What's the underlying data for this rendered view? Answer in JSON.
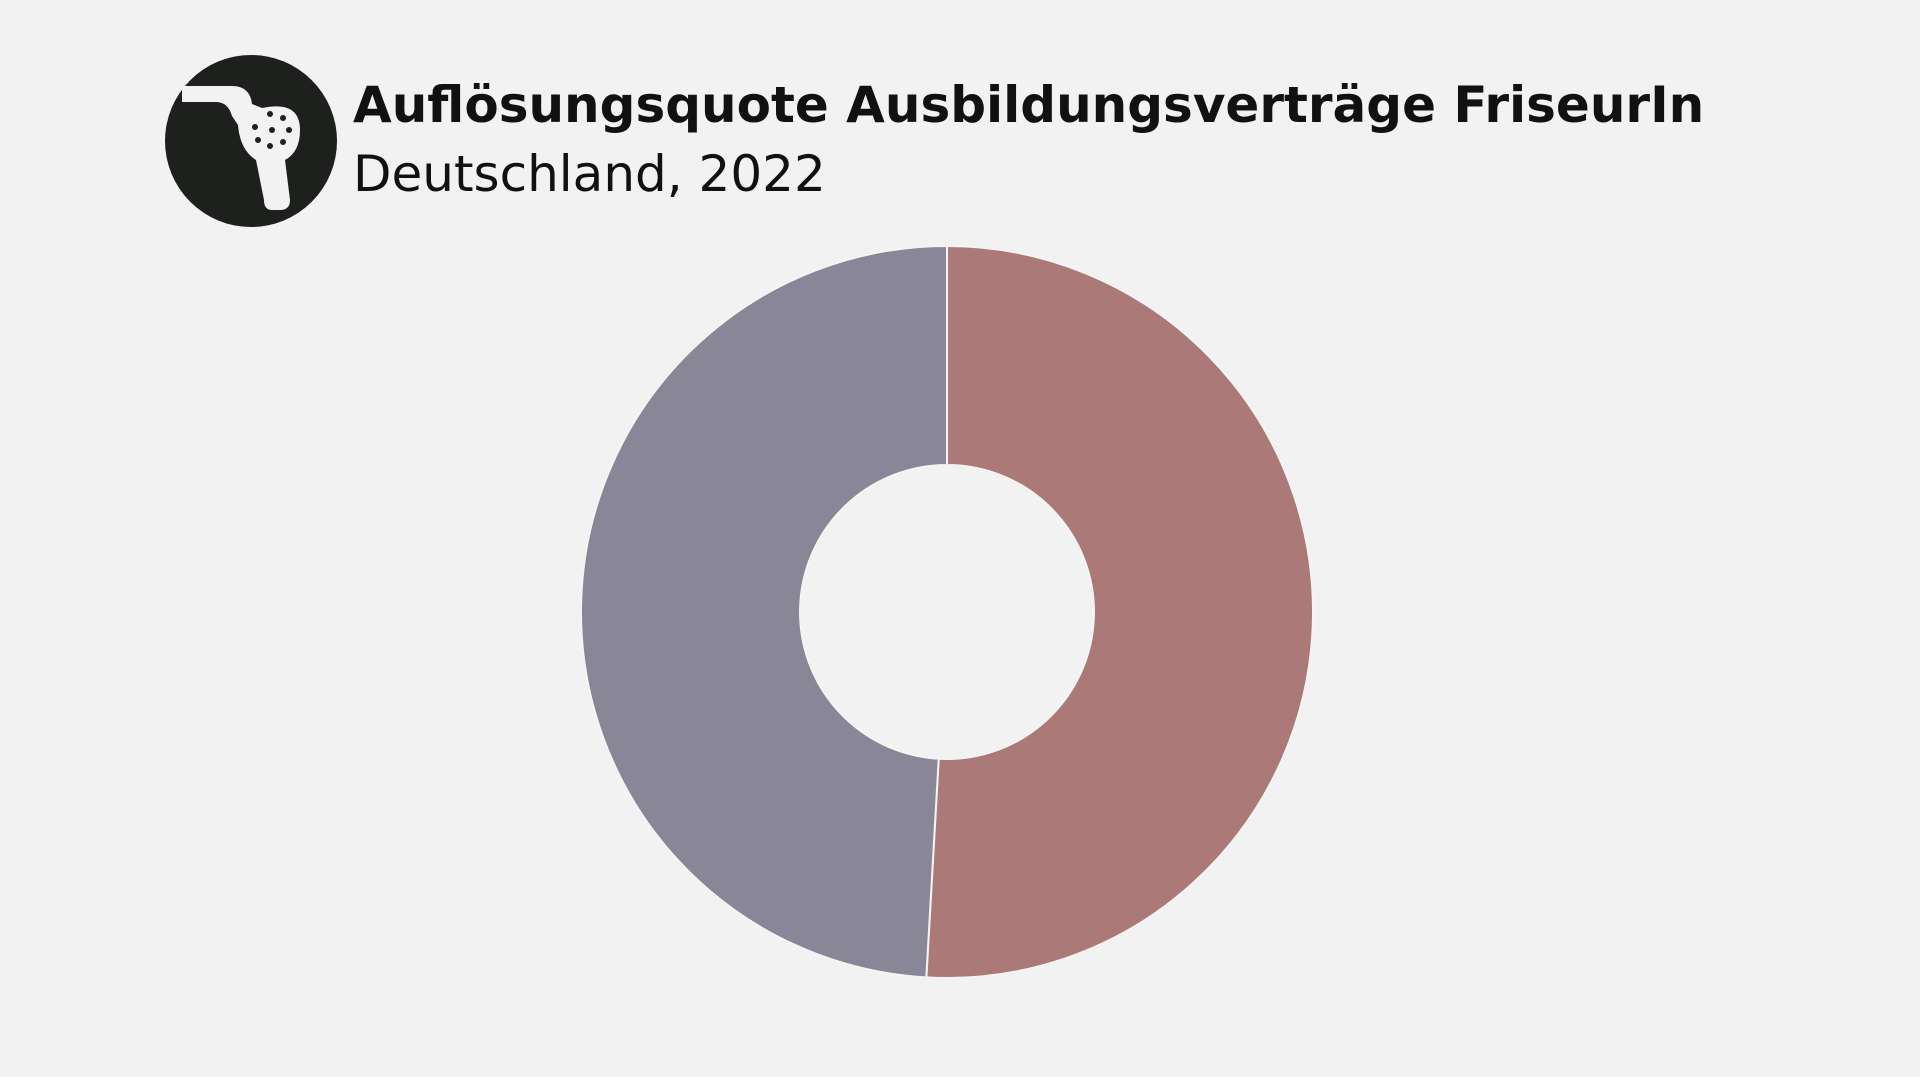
{
  "chart_data": {
    "type": "pie",
    "title": "Auflösungsquote Ausbildungsverträge FriseurIn",
    "subtitle": "Deutschland, 2022",
    "categories": [
      null,
      null
    ],
    "values": [
      50.9,
      49.1
    ],
    "colors": [
      "#ab7977",
      "#898797"
    ],
    "donut": true
  }
}
